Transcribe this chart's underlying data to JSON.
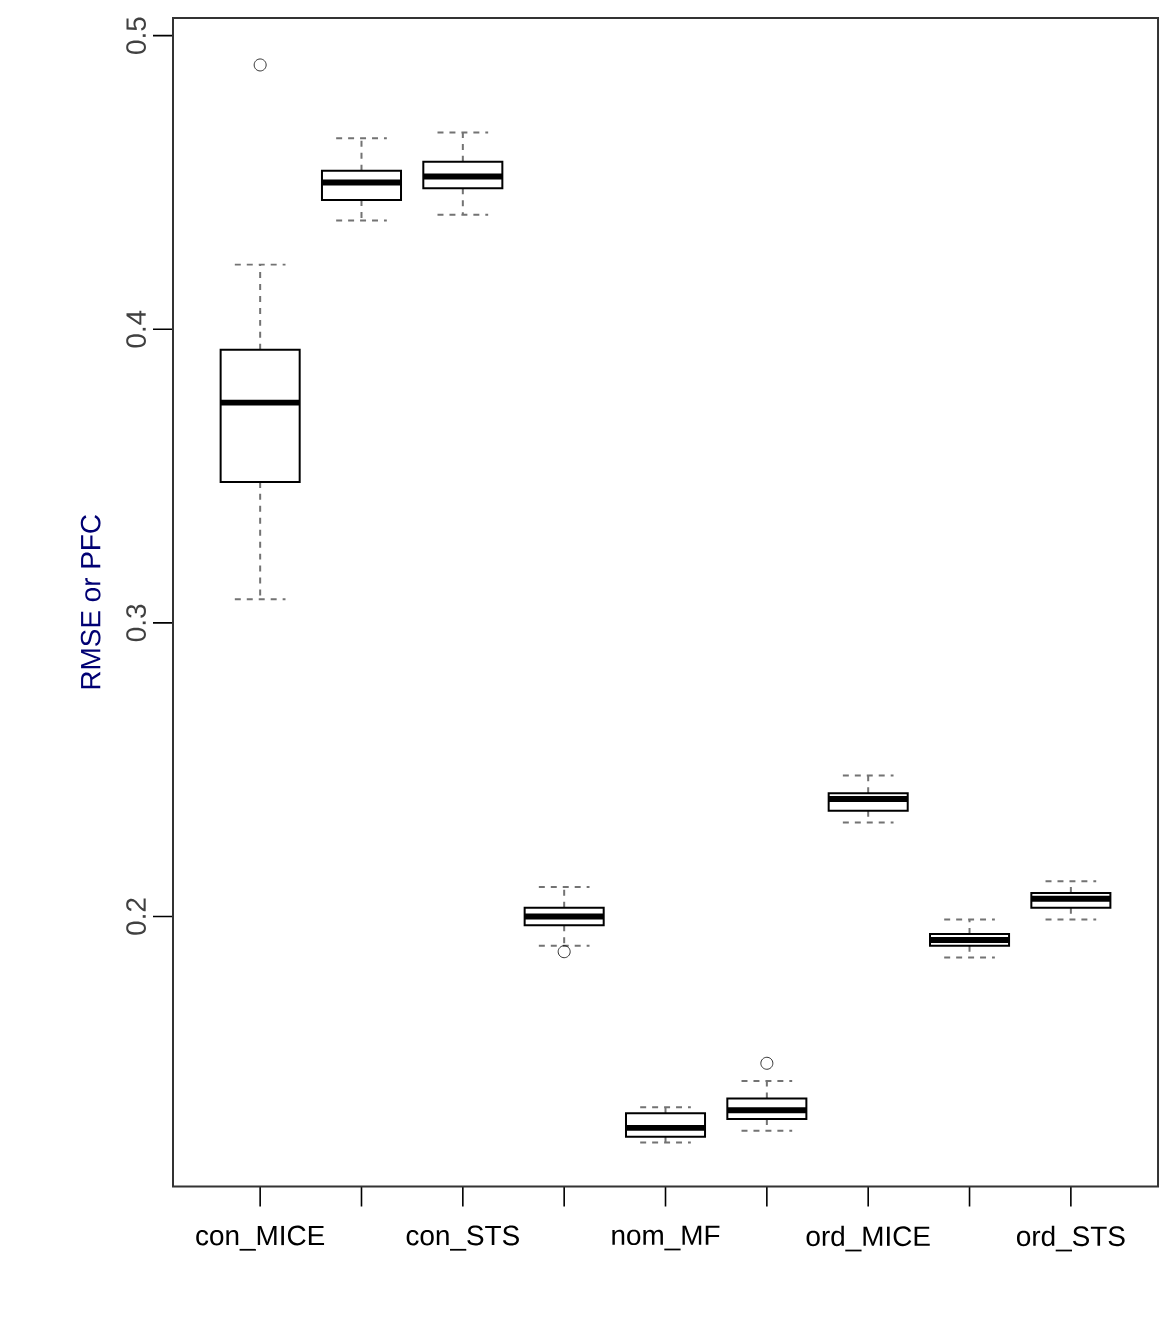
{
  "chart_data": {
    "type": "box",
    "ylabel": "RMSE or PFC",
    "categories": [
      "con_MICE",
      null,
      "con_STS",
      null,
      "nom_MF",
      null,
      "ord_MICE",
      null,
      "ord_STS"
    ],
    "boxes": [
      {
        "low": 0.308,
        "q1": 0.348,
        "median": 0.375,
        "q3": 0.393,
        "high": 0.422,
        "outliers": [
          0.49
        ]
      },
      {
        "low": 0.437,
        "q1": 0.444,
        "median": 0.45,
        "q3": 0.454,
        "high": 0.465
      },
      {
        "low": 0.439,
        "q1": 0.448,
        "median": 0.452,
        "q3": 0.457,
        "high": 0.467
      },
      {
        "low": 0.19,
        "q1": 0.197,
        "median": 0.2,
        "q3": 0.203,
        "high": 0.21,
        "outliers": [
          0.188
        ]
      },
      {
        "low": 0.123,
        "q1": 0.125,
        "median": 0.128,
        "q3": 0.133,
        "high": 0.135
      },
      {
        "low": 0.127,
        "q1": 0.131,
        "median": 0.134,
        "q3": 0.138,
        "high": 0.144,
        "outliers": [
          0.15
        ]
      },
      {
        "low": 0.232,
        "q1": 0.236,
        "median": 0.24,
        "q3": 0.242,
        "high": 0.248
      },
      {
        "low": 0.186,
        "q1": 0.19,
        "median": 0.192,
        "q3": 0.194,
        "high": 0.199
      },
      {
        "low": 0.199,
        "q1": 0.203,
        "median": 0.206,
        "q3": 0.208,
        "high": 0.212
      }
    ],
    "ylim": [
      0.108,
      0.506
    ],
    "yticks": [
      0.2,
      0.3,
      0.4,
      0.5
    ]
  }
}
